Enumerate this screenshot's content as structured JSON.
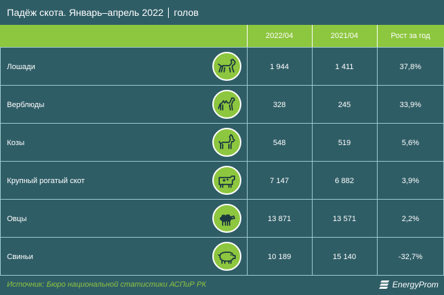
{
  "title": {
    "main": "Падёж скота. Январь–апрель 2022",
    "unit": "голов"
  },
  "colors": {
    "background": "#2f5d66",
    "accent": "#8dc63f",
    "grid": "#9ec9cf",
    "text": "#ffffff"
  },
  "chart_data": {
    "type": "table",
    "title": "Падёж скота. Январь–апрель 2022",
    "unit": "голов",
    "columns": [
      "2022/04",
      "2021/04",
      "Рост за год"
    ],
    "rows": [
      {
        "label": "Лошади",
        "icon": "horse-icon",
        "v2022": "1 944",
        "v2021": "1 411",
        "growth": "37,8%"
      },
      {
        "label": "Верблюды",
        "icon": "camel-icon",
        "v2022": "328",
        "v2021": "245",
        "growth": "33,9%"
      },
      {
        "label": "Козы",
        "icon": "goat-icon",
        "v2022": "548",
        "v2021": "519",
        "growth": "5,6%"
      },
      {
        "label": "Крупный рогатый скот",
        "icon": "cow-icon",
        "v2022": "7 147",
        "v2021": "6 882",
        "growth": "3,9%"
      },
      {
        "label": "Овцы",
        "icon": "sheep-icon",
        "v2022": "13 871",
        "v2021": "13 571",
        "growth": "2,2%"
      },
      {
        "label": "Свиньи",
        "icon": "pig-icon",
        "v2022": "10 189",
        "v2021": "15 140",
        "growth": "-32,7%"
      }
    ]
  },
  "footer": {
    "source": "Источник: Бюро национальной статистики АСПиР РК",
    "brand": "EnergyProm"
  }
}
